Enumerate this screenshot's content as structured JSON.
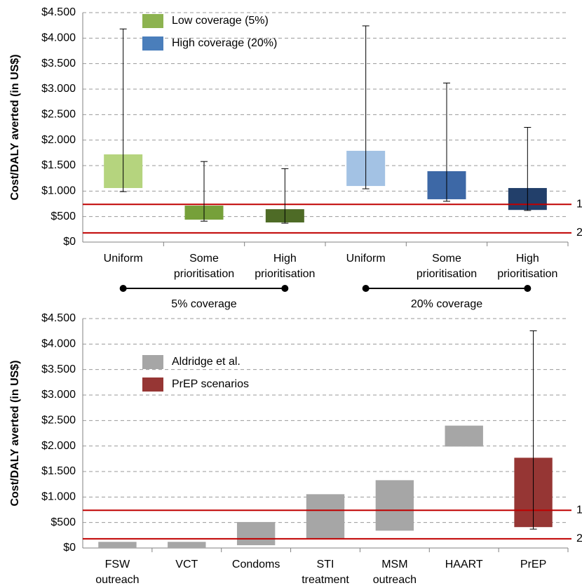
{
  "chart_data": [
    {
      "type": "range_bar",
      "ylabel": "Cost/DALY averted (in US$)",
      "ylim": [
        0,
        4500
      ],
      "yticks": [
        {
          "value": 0,
          "label": "$0"
        },
        {
          "value": 500,
          "label": "$500"
        },
        {
          "value": 1000,
          "label": "$1.000"
        },
        {
          "value": 1500,
          "label": "$1.500"
        },
        {
          "value": 2000,
          "label": "$2.000"
        },
        {
          "value": 2500,
          "label": "$2.500"
        },
        {
          "value": 3000,
          "label": "$3.000"
        },
        {
          "value": 3500,
          "label": "$3.500"
        },
        {
          "value": 4000,
          "label": "$4.000"
        },
        {
          "value": 4500,
          "label": "$4.500"
        }
      ],
      "grid": true,
      "categories": [
        "Uniform",
        "Some prioritisation",
        "High prioritisation",
        "Uniform",
        "Some prioritisation",
        "High prioritisation"
      ],
      "low": [
        1060,
        440,
        385,
        1100,
        840,
        630
      ],
      "high": [
        1720,
        715,
        645,
        1790,
        1390,
        1060
      ],
      "whisker_min": [
        990,
        410,
        370,
        1045,
        800,
        620
      ],
      "whisker_max": [
        4180,
        1580,
        1440,
        4240,
        3120,
        2250
      ],
      "colors": [
        "#b5d47e",
        "#76a03a",
        "#4e6b26",
        "#a3c2e4",
        "#3d68a6",
        "#223f6a"
      ],
      "legend": [
        {
          "name": "Low coverage (5%)",
          "color": "#8db350"
        },
        {
          "name": "High coverage (20%)",
          "color": "#4a7ebb"
        }
      ],
      "reference_lines": [
        {
          "value": 740,
          "label": "1",
          "color": "#c00000"
        },
        {
          "value": 180,
          "label": "2",
          "color": "#c00000"
        }
      ],
      "groups": [
        {
          "label": "5% coverage",
          "from": 0,
          "to": 2
        },
        {
          "label": "20% coverage",
          "from": 3,
          "to": 5
        }
      ]
    },
    {
      "type": "range_bar",
      "ylabel": "Cost/DALY averted (in US$)",
      "ylim": [
        0,
        4500
      ],
      "yticks": [
        {
          "value": 0,
          "label": "$0"
        },
        {
          "value": 500,
          "label": "$500"
        },
        {
          "value": 1000,
          "label": "$1.000"
        },
        {
          "value": 1500,
          "label": "$1.500"
        },
        {
          "value": 2000,
          "label": "$2.000"
        },
        {
          "value": 2500,
          "label": "$2.500"
        },
        {
          "value": 3000,
          "label": "$3.000"
        },
        {
          "value": 3500,
          "label": "$3.500"
        },
        {
          "value": 4000,
          "label": "$4.000"
        },
        {
          "value": 4500,
          "label": "$4.500"
        }
      ],
      "grid": true,
      "categories": [
        "FSW outreach",
        "VCT",
        "Condoms",
        "STI treatment",
        "MSM outreach",
        "HAART",
        "PrEP"
      ],
      "low": [
        0,
        0,
        55,
        190,
        340,
        1990,
        410
      ],
      "high": [
        120,
        120,
        510,
        1055,
        1330,
        2400,
        1770
      ],
      "whisker_min": [
        null,
        null,
        null,
        null,
        null,
        null,
        370
      ],
      "whisker_max": [
        null,
        null,
        null,
        null,
        null,
        null,
        4260
      ],
      "colors": [
        "#a6a6a6",
        "#a6a6a6",
        "#a6a6a6",
        "#a6a6a6",
        "#a6a6a6",
        "#a6a6a6",
        "#963634"
      ],
      "legend": [
        {
          "name": "Aldridge et al.",
          "color": "#a6a6a6"
        },
        {
          "name": "PrEP scenarios",
          "color": "#963634"
        }
      ],
      "reference_lines": [
        {
          "value": 740,
          "label": "1",
          "color": "#c00000"
        },
        {
          "value": 180,
          "label": "2",
          "color": "#c00000"
        }
      ]
    }
  ]
}
